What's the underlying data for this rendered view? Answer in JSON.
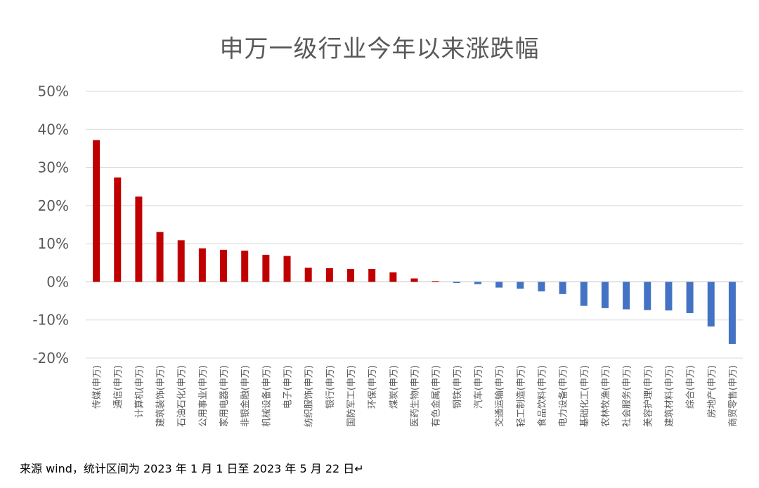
{
  "source_note": "来源 wind，统计区间为 2023 年 1 月 1 日至 2023 年 5 月 22 日↵",
  "colors": {
    "positive": "#C00000",
    "negative": "#4472C4",
    "grid": "#D9D9D9",
    "axis_text": "#595959"
  },
  "chart_data": {
    "type": "bar",
    "title": "申万一级行业今年以来涨跌幅",
    "xlabel": "",
    "ylabel": "",
    "ylim": [
      -20,
      50
    ],
    "y_ticks": [
      50,
      40,
      30,
      20,
      10,
      0,
      -10,
      -20
    ],
    "y_tick_labels": [
      "50%",
      "40%",
      "30%",
      "20%",
      "10%",
      "0%",
      "-10%",
      "-20%"
    ],
    "grid": true,
    "legend": "none",
    "categories": [
      "传媒(申万)",
      "通信(申万)",
      "计算机(申万)",
      "建筑装饰(申万)",
      "石油石化(申万)",
      "公用事业(申万)",
      "家用电器(申万)",
      "非银金融(申万)",
      "机械设备(申万)",
      "电子(申万)",
      "纺织服饰(申万)",
      "银行(申万)",
      "国防军工(申万)",
      "环保(申万)",
      "煤炭(申万)",
      "医药生物(申万)",
      "有色金属(申万)",
      "钢铁(申万)",
      "汽车(申万)",
      "交通运输(申万)",
      "轻工制造(申万)",
      "食品饮料(申万)",
      "电力设备(申万)",
      "基础化工(申万)",
      "农林牧渔(申万)",
      "社会服务(申万)",
      "美容护理(申万)",
      "建筑材料(申万)",
      "综合(申万)",
      "房地产(申万)",
      "商贸零售(申万)"
    ],
    "values": [
      37.2,
      27.4,
      22.4,
      13.1,
      10.9,
      8.8,
      8.4,
      8.2,
      7.1,
      6.8,
      3.7,
      3.6,
      3.4,
      3.4,
      2.5,
      0.9,
      0.2,
      -0.3,
      -0.6,
      -1.5,
      -1.8,
      -2.5,
      -3.2,
      -6.3,
      -6.9,
      -7.2,
      -7.4,
      -7.5,
      -8.2,
      -11.7,
      -16.3
    ]
  }
}
